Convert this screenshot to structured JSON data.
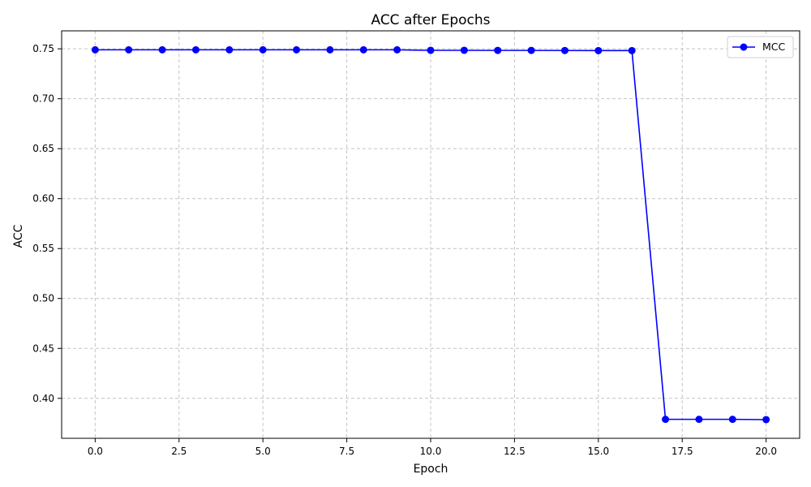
{
  "chart_data": {
    "type": "line",
    "title": "ACC after Epochs",
    "xlabel": "Epoch",
    "ylabel": "ACC",
    "xlim": [
      -1,
      21
    ],
    "ylim": [
      0.36,
      0.768
    ],
    "xticks": [
      0.0,
      2.5,
      5.0,
      7.5,
      10.0,
      12.5,
      15.0,
      17.5,
      20.0
    ],
    "yticks": [
      0.4,
      0.45,
      0.5,
      0.55,
      0.6,
      0.65,
      0.7,
      0.75
    ],
    "xtick_labels": [
      "0.0",
      "2.5",
      "5.0",
      "7.5",
      "10.0",
      "12.5",
      "15.0",
      "17.5",
      "20.0"
    ],
    "ytick_labels": [
      "0.40",
      "0.45",
      "0.50",
      "0.55",
      "0.60",
      "0.65",
      "0.70",
      "0.75"
    ],
    "grid": true,
    "legend_position": "top-right",
    "series": [
      {
        "name": "MCC",
        "color": "#0000ff",
        "marker": "circle",
        "x": [
          0,
          1,
          2,
          3,
          4,
          5,
          6,
          7,
          8,
          9,
          10,
          11,
          12,
          13,
          14,
          15,
          16,
          17,
          18,
          19,
          20
        ],
        "y": [
          0.749,
          0.749,
          0.749,
          0.749,
          0.749,
          0.749,
          0.749,
          0.749,
          0.749,
          0.749,
          0.7485,
          0.7485,
          0.7484,
          0.7484,
          0.7483,
          0.7482,
          0.7482,
          0.379,
          0.379,
          0.379,
          0.3787
        ]
      }
    ]
  }
}
